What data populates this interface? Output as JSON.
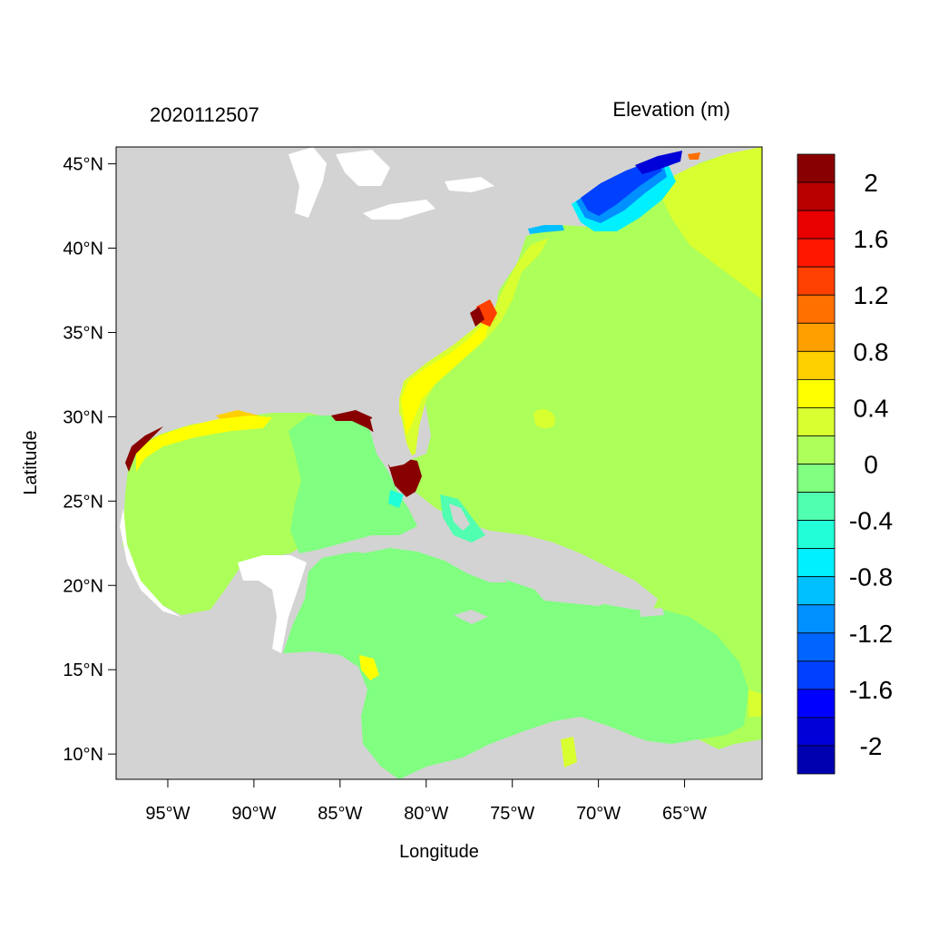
{
  "title_left": "2020112507",
  "title_right": "Elevation (m)",
  "xlabel": "Longitude",
  "ylabel": "Latitude",
  "colors": {
    "land": "#d3d3d3",
    "ocean_base": "#adff5a"
  },
  "chart_data": {
    "type": "heatmap",
    "x_range_deg": [
      -98,
      -60.5
    ],
    "y_range_deg": [
      8.5,
      46
    ],
    "x_ticks": [
      {
        "value": -95,
        "label": "95°W"
      },
      {
        "value": -90,
        "label": "90°W"
      },
      {
        "value": -85,
        "label": "85°W"
      },
      {
        "value": -80,
        "label": "80°W"
      },
      {
        "value": -75,
        "label": "75°W"
      },
      {
        "value": -70,
        "label": "70°W"
      },
      {
        "value": -65,
        "label": "65°W"
      }
    ],
    "y_ticks": [
      {
        "value": 45,
        "label": "45°N"
      },
      {
        "value": 40,
        "label": "40°N"
      },
      {
        "value": 35,
        "label": "35°N"
      },
      {
        "value": 30,
        "label": "30°N"
      },
      {
        "value": 25,
        "label": "25°N"
      },
      {
        "value": 20,
        "label": "20°N"
      },
      {
        "value": 15,
        "label": "15°N"
      },
      {
        "value": 10,
        "label": "10°N"
      }
    ],
    "colorbar": {
      "colors": [
        "#0000b0",
        "#0000d8",
        "#0000ff",
        "#0040ff",
        "#0064ff",
        "#0090ff",
        "#00c0ff",
        "#00f0ff",
        "#20ffd8",
        "#50ffb0",
        "#80ff80",
        "#adff5a",
        "#d8ff30",
        "#ffff00",
        "#ffd000",
        "#ffa000",
        "#ff7000",
        "#ff4000",
        "#ff1800",
        "#e80000",
        "#b80000",
        "#880000"
      ],
      "labels": [
        {
          "value": 2,
          "label": "2"
        },
        {
          "value": 1.6,
          "label": "1.6"
        },
        {
          "value": 1.2,
          "label": "1.2"
        },
        {
          "value": 0.8,
          "label": "0.8"
        },
        {
          "value": 0.4,
          "label": "0.4"
        },
        {
          "value": 0,
          "label": "0"
        },
        {
          "value": -0.4,
          "label": "-0.4"
        },
        {
          "value": -0.8,
          "label": "-0.8"
        },
        {
          "value": -1.2,
          "label": "-1.2"
        },
        {
          "value": -1.6,
          "label": "-1.6"
        },
        {
          "value": -2,
          "label": "-2"
        }
      ]
    },
    "regions": [
      {
        "name": "caribbean-sea",
        "level": -0.1
      },
      {
        "name": "gulf-of-mexico-east",
        "level": -0.1
      },
      {
        "name": "gulf-of-mexico-west",
        "level": 0.1
      },
      {
        "name": "atlantic-east",
        "level": 0.3
      },
      {
        "name": "gulf-of-maine",
        "level": -1.5
      },
      {
        "name": "south-florida-surge",
        "level": 2.2
      },
      {
        "name": "carolina-coast",
        "level": 0.5
      }
    ]
  }
}
